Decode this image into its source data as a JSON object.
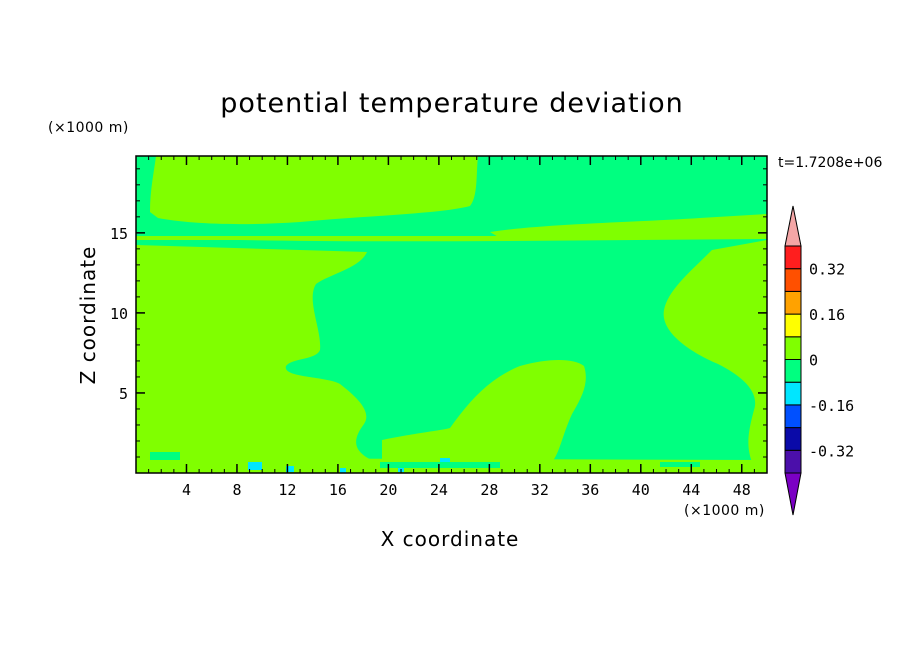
{
  "chart_data": {
    "type": "heatmap",
    "title": "potential temperature deviation",
    "xlabel": "X coordinate",
    "ylabel": "Z coordinate",
    "x_unit": "(×1000 m)",
    "y_unit": "(×1000 m)",
    "time_label": "t=1.7208e+06",
    "xlim": [
      0,
      50
    ],
    "ylim": [
      0,
      19.8
    ],
    "x_ticks": [
      4,
      8,
      12,
      16,
      20,
      24,
      28,
      32,
      36,
      40,
      44,
      48
    ],
    "y_ticks": [
      5,
      10,
      15
    ],
    "colorbar": {
      "levels": [
        -0.48,
        -0.4,
        -0.32,
        -0.24,
        -0.16,
        -0.08,
        0,
        0.08,
        0.16,
        0.24,
        0.32,
        0.4,
        0.48
      ],
      "colors": [
        "#7b00c4",
        "#4b0faa",
        "#0a0aa8",
        "#0050ff",
        "#00e6ff",
        "#00ff80",
        "#80ff00",
        "#ffff00",
        "#ffa200",
        "#ff5000",
        "#ff1e1e",
        "#f4a6a6"
      ],
      "labels": [
        "0.32",
        "0.16",
        "0",
        "-0.16",
        "-0.32"
      ]
    },
    "field_note": "Field values are near zero: positive band (0 to 0.08) covers left region below ~14 km, the top layer and a near-tropopause band; negative band (-0.08 to 0) covers the central region and thin layer near 15 km."
  }
}
